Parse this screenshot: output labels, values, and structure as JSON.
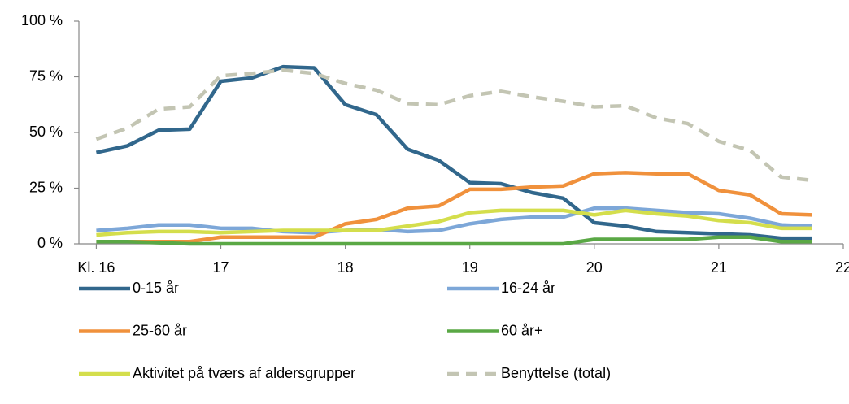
{
  "chart_data": {
    "type": "line",
    "x": [
      16,
      16.25,
      16.5,
      16.75,
      17,
      17.25,
      17.5,
      17.75,
      18,
      18.25,
      18.5,
      18.75,
      19,
      19.25,
      19.5,
      19.75,
      20,
      20.25,
      20.5,
      20.75,
      21,
      21.25,
      21.5,
      21.75
    ],
    "xlim": [
      15.86,
      22
    ],
    "xticks": [
      {
        "value": 16,
        "label": "Kl.  16"
      },
      17,
      18,
      19,
      20,
      21,
      22
    ],
    "ylim": [
      0,
      100
    ],
    "yticks": [
      {
        "value": 0,
        "label": "0 %"
      },
      {
        "value": 25,
        "label": "25 %"
      },
      {
        "value": 50,
        "label": "50 %"
      },
      {
        "value": 75,
        "label": "75 %"
      },
      {
        "value": 100,
        "label": "100 %"
      }
    ],
    "grid": false,
    "legend": "bottom",
    "series": [
      {
        "name": "0-15 år",
        "color": "#31678c",
        "values": [
          41,
          44,
          51,
          51.5,
          73,
          74.5,
          79.5,
          79,
          62.5,
          58,
          42.5,
          37.5,
          27.5,
          27,
          23,
          20.5,
          9.5,
          8,
          5.5,
          5,
          4.5,
          4,
          2.5,
          2.5
        ]
      },
      {
        "name": "16-24 år",
        "color": "#7da7d8",
        "values": [
          6,
          7,
          8.5,
          8.5,
          7,
          7,
          5.5,
          5,
          6,
          6.5,
          5.5,
          6,
          9,
          11,
          12,
          12,
          16,
          16,
          15,
          14,
          13.5,
          11.5,
          8.5,
          8
        ]
      },
      {
        "name": "25-60 år",
        "color": "#f0913c",
        "values": [
          1,
          1,
          1,
          1,
          3,
          3,
          3,
          3,
          9,
          11,
          16,
          17,
          24.5,
          24.5,
          25.5,
          26,
          31.5,
          32,
          31.5,
          31.5,
          24,
          22,
          13.5,
          13
        ]
      },
      {
        "name": "60 år+",
        "color": "#5aa845",
        "values": [
          1,
          1,
          0.5,
          0,
          0,
          0,
          0,
          0,
          0,
          0,
          0,
          0,
          0,
          0,
          0,
          0,
          2,
          2,
          2,
          2,
          3,
          3,
          1,
          1
        ]
      },
      {
        "name": "Aktivitet på tværs af aldersgrupper",
        "color": "#d4de4c",
        "values": [
          4,
          5,
          5.5,
          5.5,
          5,
          5.5,
          6,
          6,
          6,
          6,
          8,
          10,
          14,
          15,
          15,
          15,
          13,
          15,
          13.5,
          12.5,
          10.5,
          9.5,
          7,
          7
        ]
      },
      {
        "name": "Benyttelse (total)",
        "color": "#c3c5b3",
        "style": "dashed",
        "values": [
          47,
          52,
          60.5,
          61.5,
          75.5,
          76.5,
          78,
          76.5,
          72,
          69,
          63,
          62.5,
          66.5,
          68.5,
          66,
          64,
          61.5,
          62,
          56.5,
          54,
          46,
          42,
          30,
          28.5
        ]
      }
    ]
  }
}
